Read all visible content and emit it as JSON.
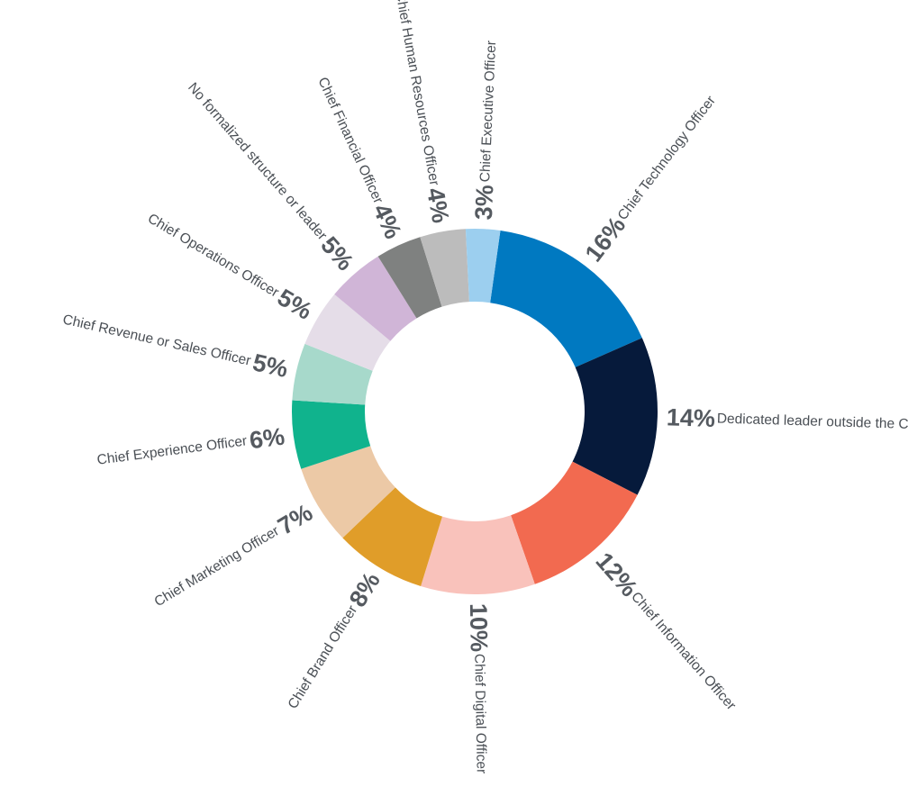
{
  "chart_data": {
    "type": "donut",
    "title": "",
    "slices": [
      {
        "label": "Chief Technology Officer",
        "value": 16,
        "value_label": "16%",
        "color": "#0079c1"
      },
      {
        "label": "Dedicated leader outside the C-suite",
        "value": 14,
        "value_label": "14%",
        "color": "#061a3b"
      },
      {
        "label": "Chief Information Officer",
        "value": 12,
        "value_label": "12%",
        "color": "#f26a50"
      },
      {
        "label": "Chief Digital Officer",
        "value": 10,
        "value_label": "10%",
        "color": "#f9c2bb"
      },
      {
        "label": "Chief Brand Officer",
        "value": 8,
        "value_label": "8%",
        "color": "#e09d29"
      },
      {
        "label": "Chief Marketing Officer",
        "value": 7,
        "value_label": "7%",
        "color": "#ecc9a6"
      },
      {
        "label": "Chief Experience Officer",
        "value": 6,
        "value_label": "6%",
        "color": "#10b38d"
      },
      {
        "label": "Chief Revenue or Sales Officer",
        "value": 5,
        "value_label": "5%",
        "color": "#a7d9cb"
      },
      {
        "label": "Chief Operations Officer",
        "value": 5,
        "value_label": "5%",
        "color": "#e5dde8"
      },
      {
        "label": "No formalized structure or leader",
        "value": 5,
        "value_label": "5%",
        "color": "#d0b5d7"
      },
      {
        "label": "Chief Financial Officer",
        "value": 4,
        "value_label": "4%",
        "color": "#7f8180"
      },
      {
        "label": "Chief Human Resources Officer",
        "value": 4,
        "value_label": "4%",
        "color": "#bcbcbc"
      },
      {
        "label": "Chief Executive Officer",
        "value": 3,
        "value_label": "3%",
        "color": "#9ccfef"
      }
    ]
  }
}
